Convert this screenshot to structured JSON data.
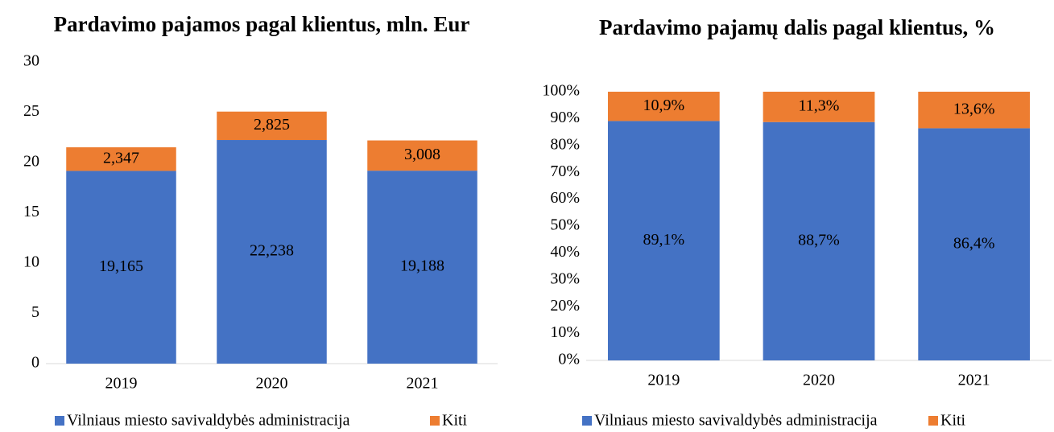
{
  "chart_data": [
    {
      "type": "stacked_bar",
      "title": "Pardavimo pajamos pagal klientus, mln. Eur",
      "categories": [
        "2019",
        "2020",
        "2021"
      ],
      "series": [
        {
          "name": "Vilniaus miesto savivaldybės administracija",
          "color": "#4472c4",
          "values": [
            19.165,
            22.238,
            19.188
          ],
          "value_labels": [
            "19,165",
            "22,238",
            "19,188"
          ]
        },
        {
          "name": "Kiti",
          "color": "#ed7d31",
          "values": [
            2.347,
            2.825,
            3.008
          ],
          "value_labels": [
            "2,347",
            "2,825",
            "3,008"
          ]
        }
      ],
      "ylim": [
        0,
        30
      ],
      "yticks": [
        0,
        5,
        10,
        15,
        20,
        25,
        30
      ],
      "legend": "bottom",
      "grid": false
    },
    {
      "type": "stacked_bar",
      "title": "Pardavimo pajamų dalis pagal klientus, %",
      "categories": [
        "2019",
        "2020",
        "2021"
      ],
      "series": [
        {
          "name": "Vilniaus miesto savivaldybės administracija",
          "color": "#4472c4",
          "values": [
            89.1,
            88.7,
            86.4
          ],
          "value_labels": [
            "89,1%",
            "88,7%",
            "86,4%"
          ]
        },
        {
          "name": "Kiti",
          "color": "#ed7d31",
          "values": [
            10.9,
            11.3,
            13.6
          ],
          "value_labels": [
            "10,9%",
            "11,3%",
            "13,6%"
          ]
        }
      ],
      "ylim": [
        0,
        100
      ],
      "yticks": [
        {
          "value": 0,
          "label": "0%"
        },
        {
          "value": 10,
          "label": "10%"
        },
        {
          "value": 20,
          "label": "20%"
        },
        {
          "value": 30,
          "label": "30%"
        },
        {
          "value": 40,
          "label": "40%"
        },
        {
          "value": 50,
          "label": "50%"
        },
        {
          "value": 60,
          "label": "60%"
        },
        {
          "value": 70,
          "label": "70%"
        },
        {
          "value": 80,
          "label": "80%"
        },
        {
          "value": 90,
          "label": "90%"
        },
        {
          "value": 100,
          "label": "100%"
        }
      ],
      "legend": "bottom",
      "grid": false
    }
  ]
}
